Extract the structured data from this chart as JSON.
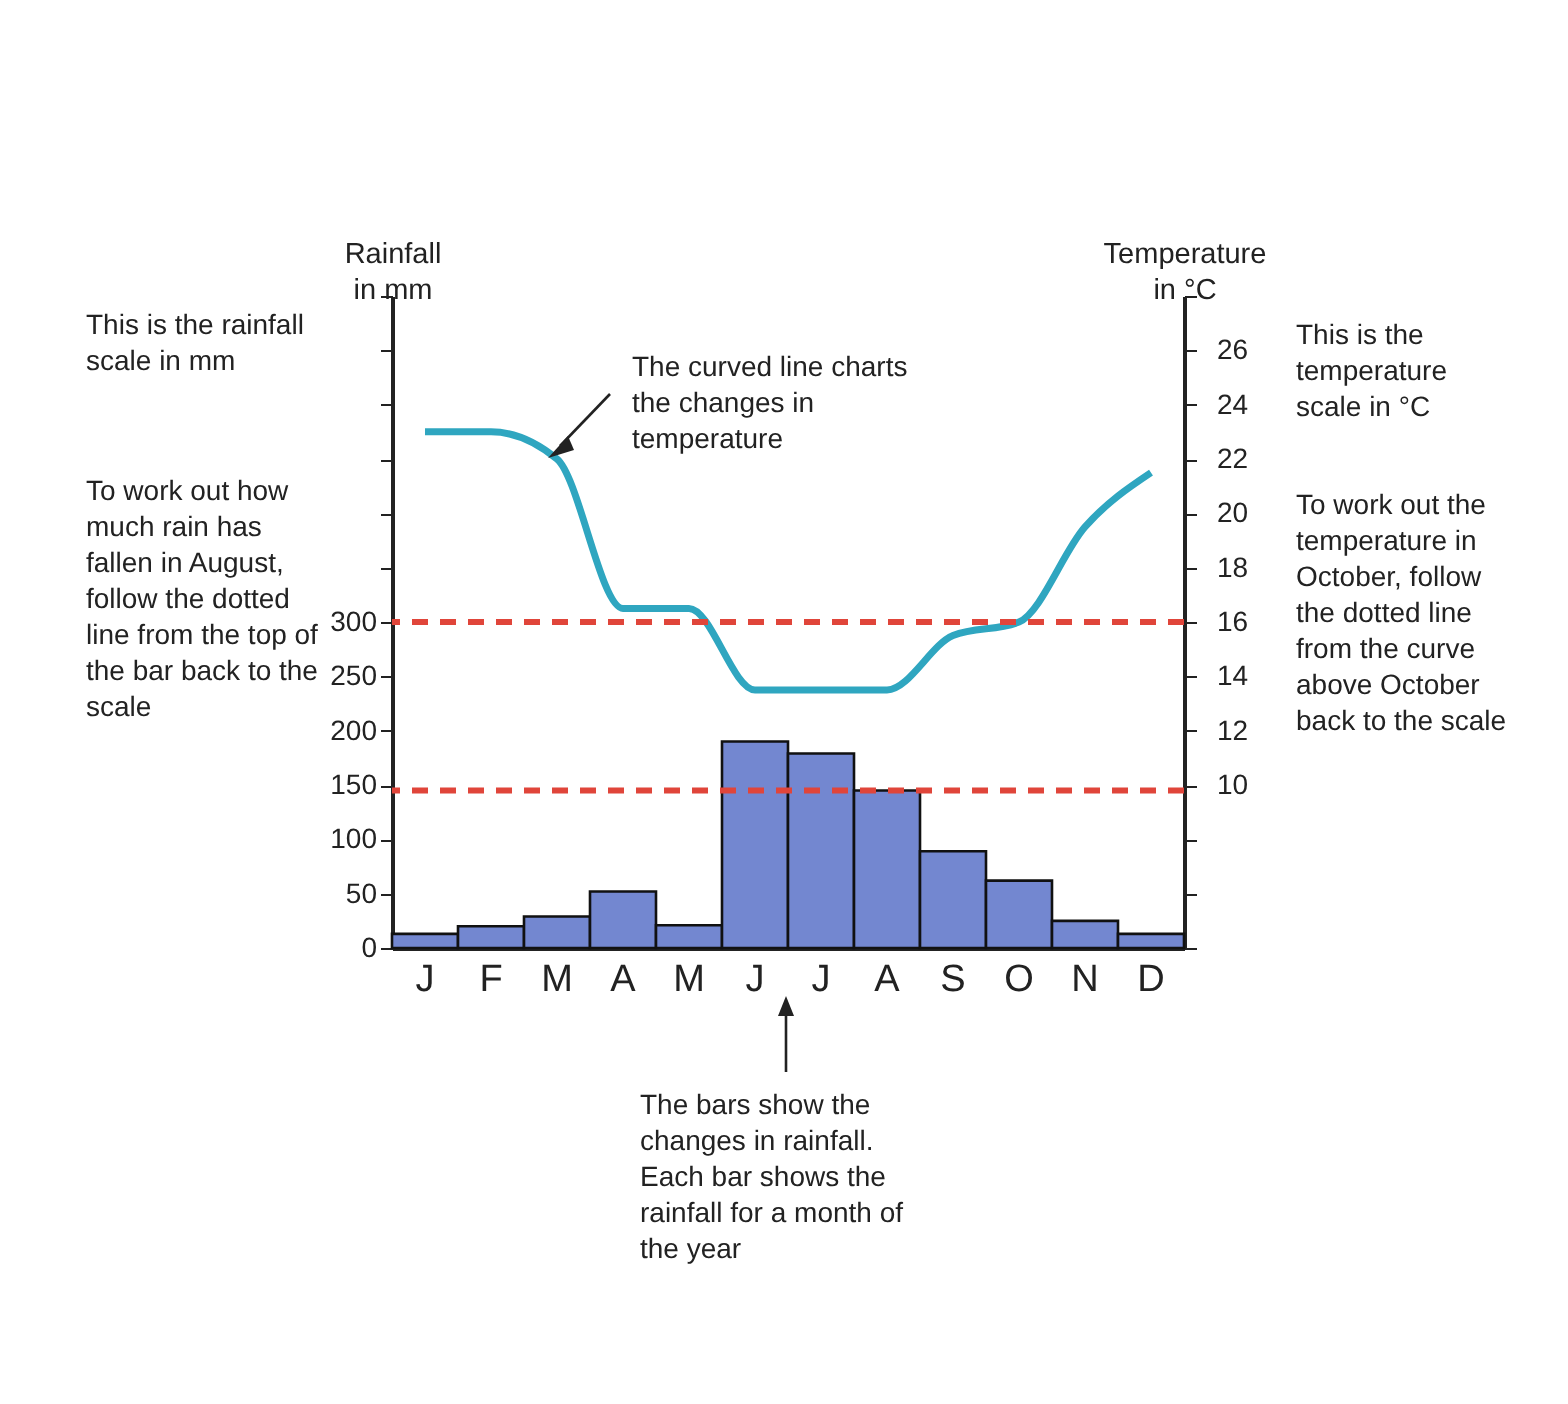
{
  "chart_data": {
    "type": "bar",
    "categories": [
      "J",
      "F",
      "M",
      "A",
      "M",
      "J",
      "J",
      "A",
      "S",
      "O",
      "N",
      "D"
    ],
    "ylabel": "Rainfall in mm",
    "y2label": "Temperature in °C",
    "series": [
      {
        "color": "#7387d0",
        "values": [
          13,
          20,
          29,
          52,
          21,
          190,
          179,
          145,
          89,
          62,
          25,
          13
        ]
      },
      {
        "type": "line",
        "axis": "y2",
        "color": "#2fa6c0",
        "values": [
          23,
          23,
          22,
          16.5,
          16.5,
          13.5,
          13.5,
          13.5,
          15.5,
          16,
          19.5,
          21.5
        ]
      }
    ],
    "ylim": [
      0,
      600
    ],
    "yticks": [
      0,
      50,
      100,
      150,
      200,
      250,
      300,
      {
        "value": 350,
        "label": null
      },
      {
        "value": 400,
        "label": null
      },
      {
        "value": 450,
        "label": null
      },
      {
        "value": 500,
        "label": null
      },
      {
        "value": 550,
        "label": null
      },
      {
        "value": 600,
        "label": null
      }
    ],
    "y2lim": [
      4,
      28
    ],
    "y2ticks": [
      {
        "value": 4,
        "label": null
      },
      {
        "value": 6,
        "label": null
      },
      {
        "value": 8,
        "label": null
      },
      10,
      12,
      14,
      16,
      18,
      20,
      22,
      24,
      26,
      {
        "value": 28,
        "label": null
      }
    ],
    "ref_lines": [
      {
        "axis": "y",
        "value": 145,
        "color": "#e0453a",
        "line_style": "dashed"
      },
      {
        "axis": "y2",
        "value": 16,
        "color": "#e0453a",
        "line_style": "dashed"
      }
    ],
    "grid": false,
    "annotations": [
      "This is the rainfall scale in mm",
      "To work out how much rain has fallen in August, follow the dotted line from the top of the bar back to the scale",
      "This is the temperature scale in °C",
      "To work out the temperature in October, follow the dotted line from the curve above October back to the scale",
      "The curved line charts the changes in temperature",
      "The bars show the changes in rainfall. Each bar shows the rainfall for a month of the year"
    ]
  }
}
